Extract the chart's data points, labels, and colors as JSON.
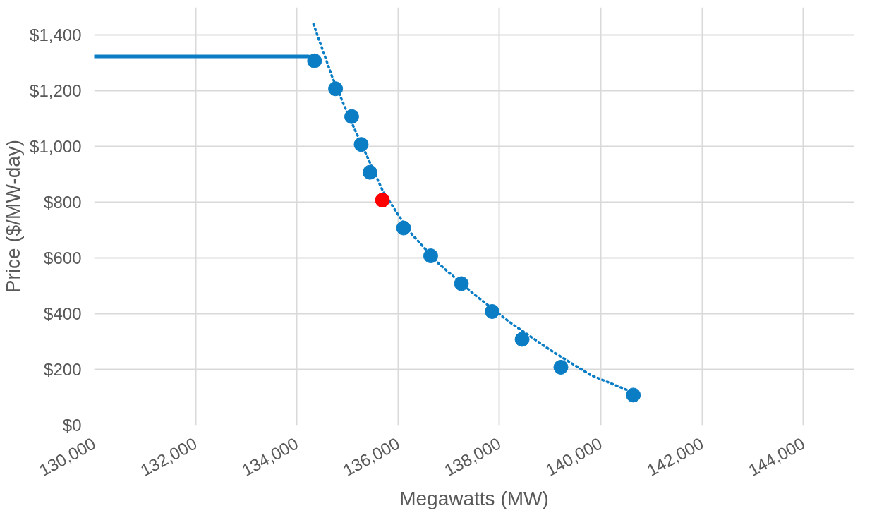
{
  "chart_data": {
    "type": "scatter",
    "xlabel": "Megawatts (MW)",
    "ylabel": "Price ($/MW-day)",
    "xlim": [
      130000,
      145000
    ],
    "ylim": [
      0,
      1500
    ],
    "xticks": [
      {
        "value": 130000,
        "label": "130,000"
      },
      {
        "value": 132000,
        "label": "132,000"
      },
      {
        "value": 134000,
        "label": "134,000"
      },
      {
        "value": 136000,
        "label": "136,000"
      },
      {
        "value": 138000,
        "label": "138,000"
      },
      {
        "value": 140000,
        "label": "140,000"
      },
      {
        "value": 142000,
        "label": "142,000"
      },
      {
        "value": 144000,
        "label": "144,000"
      }
    ],
    "yticks": [
      {
        "value": 0,
        "label": "$0"
      },
      {
        "value": 200,
        "label": "$200"
      },
      {
        "value": 400,
        "label": "$400"
      },
      {
        "value": 600,
        "label": "$600"
      },
      {
        "value": 800,
        "label": "$800"
      },
      {
        "value": 1000,
        "label": "$1,000"
      },
      {
        "value": 1200,
        "label": "$1,200"
      },
      {
        "value": 1400,
        "label": "$1,400"
      }
    ],
    "grid": true,
    "marker": "circle",
    "series": [
      {
        "type": "line",
        "color": "#0a7dc4",
        "line_style": "solid",
        "marker": "none",
        "x": [
          130000,
          134230
        ],
        "values": [
          1324,
          1324
        ]
      },
      {
        "type": "line",
        "color": "#0a7dc4",
        "line_style": "dotted",
        "marker": "none",
        "x": [
          134330,
          134700,
          135000,
          135300,
          135700,
          136200,
          136800,
          137500,
          138200,
          139000,
          139800,
          140600
        ],
        "values": [
          1440,
          1250,
          1120,
          1000,
          840,
          700,
          580,
          470,
          370,
          270,
          180,
          120
        ]
      },
      {
        "color": "#0a7dc4",
        "x": [
          134350,
          134765,
          135083,
          135271,
          135444,
          136108,
          136643,
          137249,
          137856,
          138448,
          139213,
          140643
        ],
        "values": [
          1308,
          1208,
          1108,
          1008,
          908,
          708,
          608,
          508,
          408,
          308,
          208,
          108
        ]
      },
      {
        "color": "#ff0000",
        "x": [
          135690
        ],
        "values": [
          808
        ]
      }
    ]
  }
}
